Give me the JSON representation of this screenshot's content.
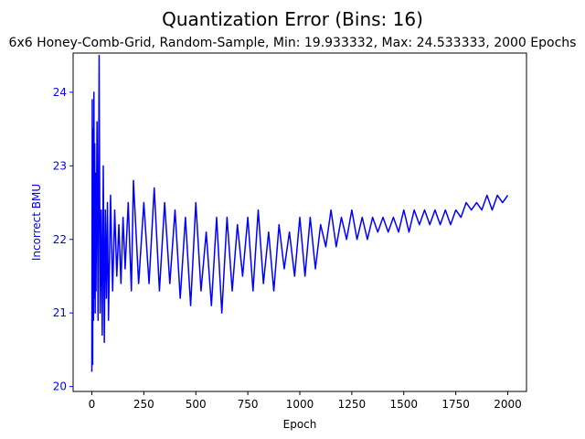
{
  "chart_data": {
    "type": "line",
    "title": "Quantization Error (Bins: 16)",
    "subtitle": "6x6 Honey-Comb-Grid, Random-Sample, Min: 19.933332, Max: 24.533333, 2000 Epochs",
    "xlabel": "Epoch",
    "ylabel": "Incorrect BMU",
    "xlim": [
      -90,
      2090
    ],
    "ylim": [
      19.933332,
      24.533333
    ],
    "x_ticks": [
      0,
      250,
      500,
      750,
      1000,
      1250,
      1500,
      1750,
      2000
    ],
    "y_ticks": [
      20,
      21,
      22,
      23,
      24
    ],
    "grid": false,
    "series": [
      {
        "color": "#0000ff",
        "x": [
          0,
          2,
          4,
          6,
          8,
          10,
          12,
          14,
          16,
          18,
          20,
          25,
          30,
          35,
          40,
          45,
          50,
          55,
          60,
          65,
          70,
          75,
          80,
          90,
          100,
          110,
          120,
          130,
          140,
          150,
          160,
          175,
          190,
          200,
          225,
          250,
          275,
          300,
          325,
          350,
          375,
          400,
          425,
          450,
          475,
          500,
          525,
          550,
          575,
          600,
          625,
          650,
          675,
          700,
          725,
          750,
          775,
          800,
          825,
          850,
          875,
          900,
          925,
          950,
          975,
          1000,
          1025,
          1050,
          1075,
          1100,
          1125,
          1150,
          1175,
          1200,
          1225,
          1250,
          1275,
          1300,
          1325,
          1350,
          1375,
          1400,
          1425,
          1450,
          1475,
          1500,
          1525,
          1550,
          1575,
          1600,
          1625,
          1650,
          1675,
          1700,
          1725,
          1750,
          1775,
          1800,
          1825,
          1850,
          1875,
          1900,
          1925,
          1950,
          1975,
          2000
        ],
        "values": [
          20.2,
          23.9,
          20.3,
          23.5,
          20.9,
          24.0,
          21.2,
          23.3,
          21.0,
          22.9,
          21.3,
          23.6,
          20.9,
          24.5,
          21.0,
          22.4,
          20.7,
          23.0,
          20.6,
          22.4,
          21.2,
          22.5,
          20.9,
          22.6,
          21.3,
          22.4,
          21.5,
          22.2,
          21.4,
          22.3,
          21.6,
          22.5,
          21.3,
          22.8,
          21.4,
          22.5,
          21.4,
          22.7,
          21.3,
          22.5,
          21.4,
          22.4,
          21.2,
          22.3,
          21.1,
          22.5,
          21.3,
          22.1,
          21.1,
          22.3,
          21.0,
          22.3,
          21.3,
          22.2,
          21.5,
          22.3,
          21.3,
          22.4,
          21.4,
          22.1,
          21.3,
          22.2,
          21.6,
          22.1,
          21.5,
          22.3,
          21.5,
          22.3,
          21.6,
          22.2,
          21.9,
          22.4,
          21.9,
          22.3,
          22.0,
          22.4,
          22.0,
          22.3,
          22.0,
          22.3,
          22.1,
          22.3,
          22.1,
          22.3,
          22.1,
          22.4,
          22.1,
          22.4,
          22.2,
          22.4,
          22.2,
          22.4,
          22.2,
          22.4,
          22.2,
          22.4,
          22.3,
          22.5,
          22.4,
          22.5,
          22.4,
          22.6,
          22.4,
          22.6,
          22.5,
          22.6
        ]
      }
    ]
  }
}
